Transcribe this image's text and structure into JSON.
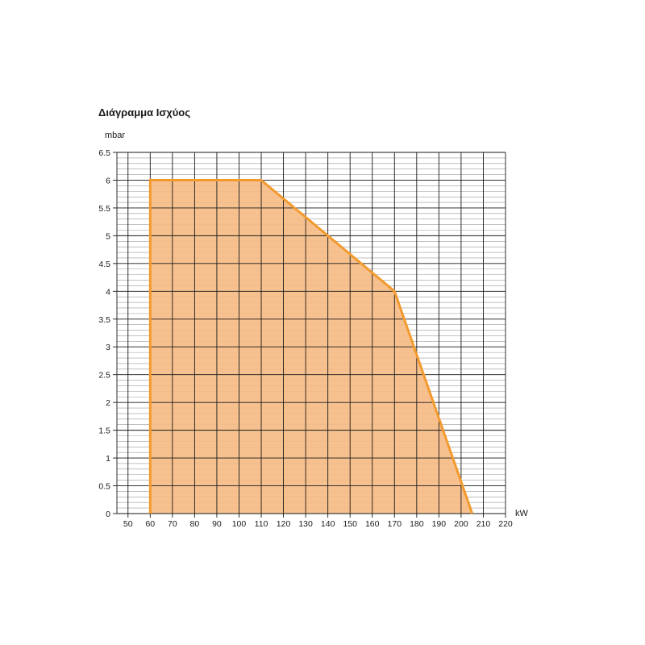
{
  "chart_data": {
    "type": "area",
    "title": "Διάγραμμα Ισχύος",
    "xlabel": "kW",
    "ylabel": "mbar",
    "xlim": [
      45,
      220
    ],
    "ylim": [
      0,
      6.5
    ],
    "x_ticks": [
      50,
      60,
      70,
      80,
      90,
      100,
      110,
      120,
      130,
      140,
      150,
      160,
      170,
      180,
      190,
      200,
      210,
      220
    ],
    "y_ticks": [
      0,
      0.5,
      1,
      1.5,
      2,
      2.5,
      3,
      3.5,
      4,
      4.5,
      5,
      5.5,
      6,
      6.5
    ],
    "grid": true,
    "series": [
      {
        "x": [
          60,
          60,
          110,
          170,
          205
        ],
        "y": [
          0,
          6,
          6,
          4,
          0
        ]
      }
    ],
    "colors": {
      "fill": "#f6bc86",
      "line": "#f39a2e",
      "grid_major": "#1a1a1a",
      "grid_minor": "#9a9a9a"
    }
  }
}
